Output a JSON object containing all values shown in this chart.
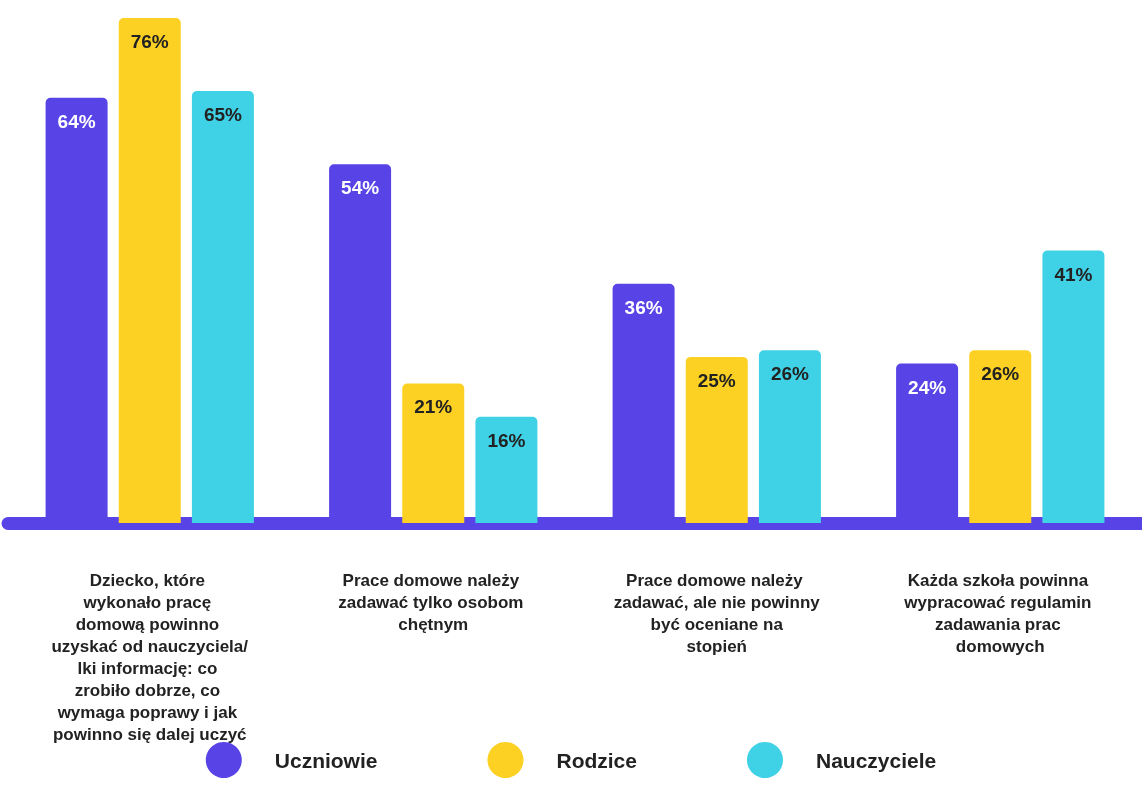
{
  "chart_data": {
    "type": "bar",
    "categories": [
      "Dziecko, które wykonało pracę domową powinno uzyskać od nauczyciela/lki informację: co zrobiło dobrze, co wymaga poprawy i jak powinno się dalej uczyć",
      "Prace domowe należy zadawać tylko osobom chętnym",
      "Prace domowe należy zadawać, ale nie powinny być oceniane na stopień",
      "Każda szkoła powinna wypracować regulamin zadawania prac domowych"
    ],
    "series": [
      {
        "name": "Uczniowie",
        "color": "#5843e6",
        "values": [
          64,
          54,
          36,
          24
        ],
        "value_labels": [
          "64%",
          "54%",
          "36%",
          "24%"
        ]
      },
      {
        "name": "Rodzice",
        "color": "#fdd124",
        "values": [
          76,
          21,
          25,
          26
        ],
        "value_labels": [
          "76%",
          "21%",
          "25%",
          "26%"
        ]
      },
      {
        "name": "Nauczyciele",
        "color": "#3fd2e6",
        "values": [
          65,
          16,
          26,
          41
        ],
        "value_labels": [
          "65%",
          "16%",
          "26%",
          "41%"
        ]
      }
    ],
    "legend": "bottom"
  }
}
